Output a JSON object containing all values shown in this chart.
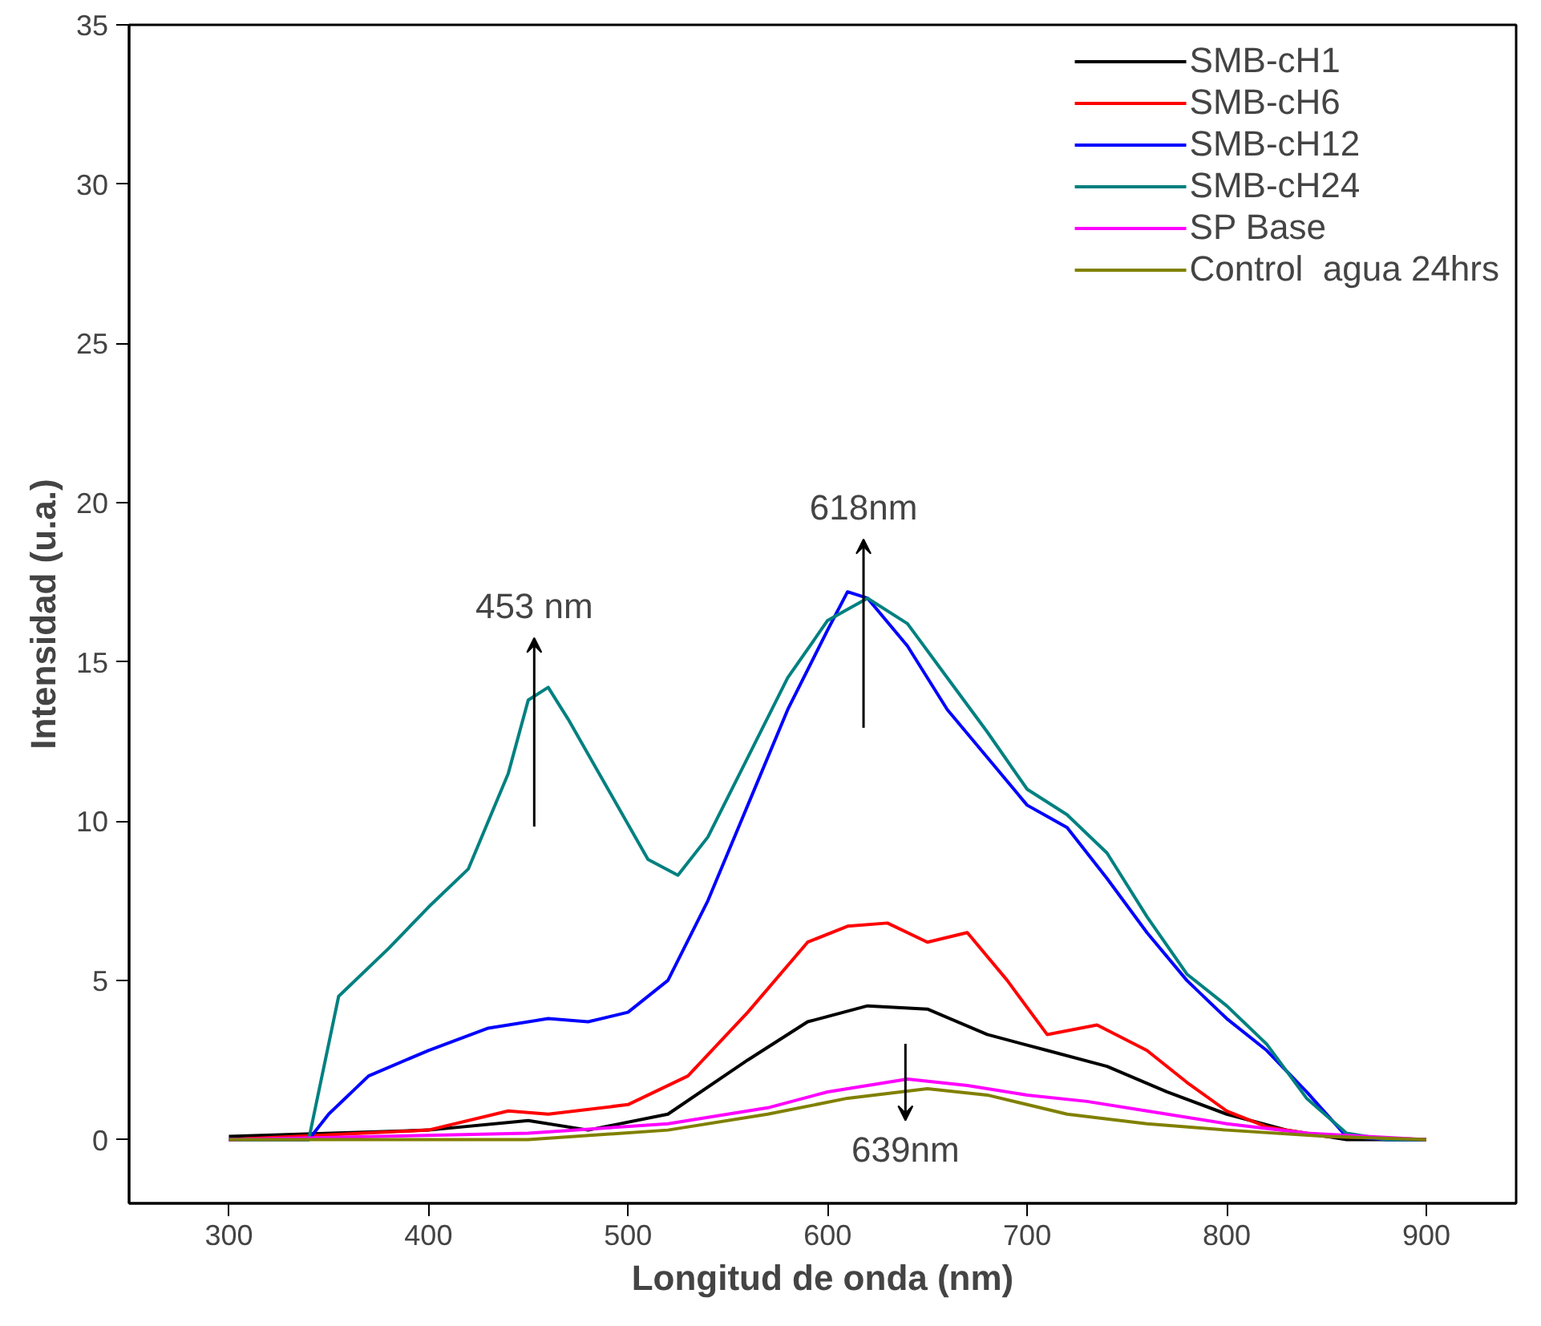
{
  "chart_data": {
    "type": "line",
    "xlabel": "Longitud de onda (nm)",
    "ylabel": "Intensidad (u.a.)",
    "xlim": [
      250,
      945
    ],
    "ylim": [
      -2,
      35
    ],
    "xticks": [
      300,
      400,
      500,
      600,
      700,
      800,
      900
    ],
    "yticks": [
      0,
      5,
      10,
      15,
      20,
      25,
      30,
      35
    ],
    "grid": false,
    "legend": "top right",
    "marker": "none",
    "line_style": "solid",
    "annotations": [
      {
        "text": "453 nm",
        "x": 453,
        "y": 13.9
      },
      {
        "text": "618nm",
        "x": 618,
        "y": 17
      },
      {
        "text": "639nm",
        "x": 639,
        "y": 1.9
      }
    ],
    "series": [
      {
        "name": "SMB-cH1",
        "color": "#000000",
        "x": [
          300,
          400,
          450,
          480,
          520,
          560,
          590,
          620,
          650,
          680,
          710,
          740,
          770,
          800,
          830,
          860,
          900
        ],
        "values": [
          0.1,
          0.3,
          0.6,
          0.3,
          0.8,
          2.5,
          3.7,
          4.2,
          4.1,
          3.3,
          2.8,
          2.3,
          1.5,
          0.8,
          0.3,
          0,
          0
        ]
      },
      {
        "name": "SMB-cH6",
        "color": "#ff0000",
        "x": [
          300,
          400,
          440,
          460,
          500,
          530,
          560,
          590,
          610,
          630,
          650,
          670,
          690,
          710,
          735,
          760,
          780,
          800,
          820,
          850,
          900
        ],
        "values": [
          0,
          0.3,
          0.9,
          0.8,
          1.1,
          2,
          4,
          6.2,
          6.7,
          6.8,
          6.2,
          6.5,
          5,
          3.3,
          3.6,
          2.8,
          1.8,
          0.9,
          0.4,
          0.1,
          0
        ]
      },
      {
        "name": "SMB-cH12",
        "color": "#0000ff",
        "x": [
          300,
          340,
          350,
          370,
          400,
          430,
          460,
          480,
          500,
          520,
          540,
          560,
          580,
          600,
          610,
          620,
          640,
          660,
          680,
          700,
          720,
          740,
          760,
          780,
          800,
          820,
          840,
          860,
          880,
          900
        ],
        "values": [
          0,
          0,
          0.8,
          2,
          2.8,
          3.5,
          3.8,
          3.7,
          4,
          5,
          7.5,
          10.5,
          13.5,
          16,
          17.2,
          17,
          15.5,
          13.5,
          12,
          10.5,
          9.8,
          8.2,
          6.5,
          5,
          3.8,
          2.8,
          1.5,
          0.1,
          0,
          0
        ]
      },
      {
        "name": "SMB-cH24",
        "color": "#008080",
        "x": [
          300,
          340,
          345,
          355,
          380,
          400,
          420,
          440,
          450,
          460,
          470,
          490,
          510,
          525,
          540,
          560,
          580,
          600,
          620,
          640,
          660,
          680,
          700,
          720,
          740,
          760,
          780,
          800,
          820,
          840,
          860,
          880,
          900
        ],
        "values": [
          0,
          0,
          1.5,
          4.5,
          6,
          7.3,
          8.5,
          11.5,
          13.8,
          14.2,
          13.2,
          11,
          8.8,
          8.3,
          9.5,
          12,
          14.5,
          16.3,
          17,
          16.2,
          14.5,
          12.8,
          11,
          10.2,
          9,
          7,
          5.2,
          4.2,
          3,
          1.3,
          0.2,
          0,
          0
        ]
      },
      {
        "name": "SP Base",
        "color": "#ff00ff",
        "x": [
          300,
          450,
          520,
          570,
          600,
          640,
          670,
          700,
          730,
          760,
          800,
          840,
          900
        ],
        "values": [
          0,
          0.2,
          0.5,
          1,
          1.5,
          1.9,
          1.7,
          1.4,
          1.2,
          0.9,
          0.5,
          0.2,
          0
        ]
      },
      {
        "name": "Control  agua 24hrs",
        "color": "#808000",
        "x": [
          300,
          450,
          520,
          570,
          610,
          650,
          680,
          720,
          760,
          800,
          850,
          900
        ],
        "values": [
          0,
          0,
          0.3,
          0.8,
          1.3,
          1.6,
          1.4,
          0.8,
          0.5,
          0.3,
          0.1,
          0
        ]
      }
    ]
  }
}
